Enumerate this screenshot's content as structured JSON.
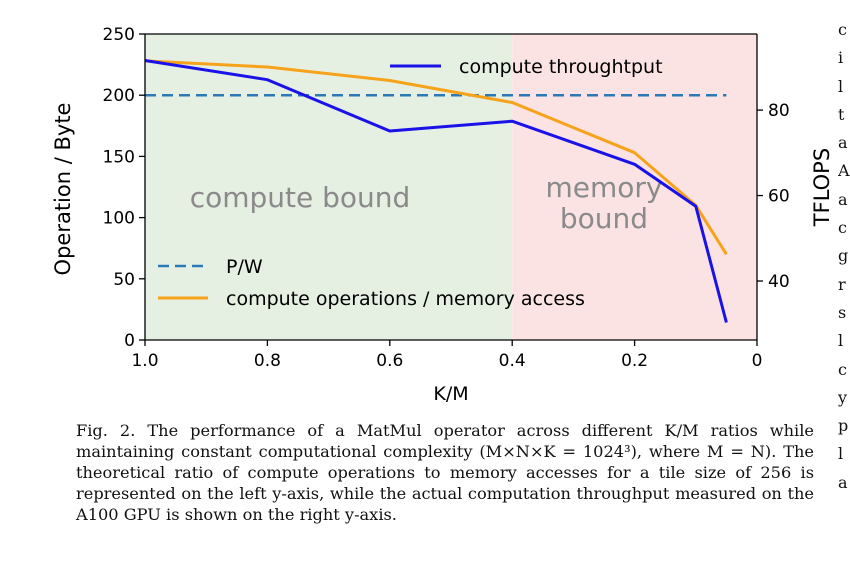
{
  "chart_data": {
    "type": "line",
    "x_axis": {
      "label": "K/M",
      "range": [
        1.0,
        0
      ],
      "ticks": [
        1.0,
        0.8,
        0.6,
        0.4,
        0.2,
        0
      ],
      "tick_labels": [
        "1.0",
        "0.8",
        "0.6",
        "0.4",
        "0.2",
        "0"
      ]
    },
    "y_axis_left": {
      "label": "Operation / Byte",
      "range": [
        0,
        250
      ],
      "ticks": [
        0,
        50,
        100,
        150,
        200,
        250
      ]
    },
    "y_axis_right": {
      "label": "TFLOPS",
      "range": [
        26.2,
        97.8
      ],
      "ticks": [
        40,
        60,
        80
      ]
    },
    "regions": [
      {
        "label": "compute bound",
        "x_range": [
          1.0,
          0.4
        ],
        "color": "#e6f0e2"
      },
      {
        "label_lines": [
          "memory",
          "bound"
        ],
        "x_range": [
          0.4,
          0
        ],
        "color": "#fbe3e4"
      }
    ],
    "series": [
      {
        "name": "compute throughtput",
        "axis": "right",
        "color": "#1a12e8",
        "x": [
          1.0,
          0.8,
          0.6,
          0.4,
          0.2,
          0.1,
          0.05
        ],
        "y": [
          91.6,
          87.1,
          75.1,
          77.4,
          67.3,
          57.5,
          30.3
        ]
      },
      {
        "name": "P/W",
        "axis": "left",
        "style": "dashed",
        "color": "#2a7ab8",
        "x": [
          1.0,
          0.05
        ],
        "y": [
          200,
          200
        ]
      },
      {
        "name": "compute operations / memory access",
        "axis": "left",
        "color": "#f7a21b",
        "x": [
          1.0,
          0.8,
          0.6,
          0.4,
          0.2,
          0.1,
          0.05
        ],
        "y": [
          228,
          223,
          212,
          194,
          153,
          110,
          70
        ]
      }
    ],
    "legend_upper": [
      "compute throughtput"
    ],
    "legend_lower": [
      "P/W",
      "compute operations / memory access"
    ]
  },
  "caption": "Fig. 2.  The performance of a MatMul operator across different K/M ratios while maintaining constant computational complexity (M×N×K = 1024³), where M = N). The theoretical ratio of compute operations to memory accesses for a tile size of 256 is represented on the left y-axis, while the actual computation throughput measured on the A100 GPU is shown on the right y-axis.",
  "right_column_fragment": [
    "c",
    "i",
    "l",
    "t",
    "a",
    "A",
    "a",
    "c",
    "g",
    "r",
    "s",
    "l",
    "c",
    "y",
    "p",
    "l",
    "a"
  ]
}
